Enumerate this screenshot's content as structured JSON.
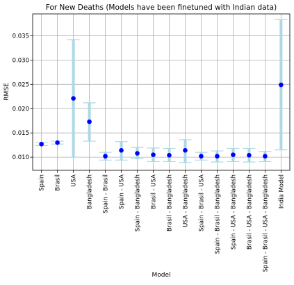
{
  "chart_data": {
    "type": "scatter",
    "title": "For New Deaths (Models have been finetuned with Indian data)",
    "xlabel": "Model",
    "ylabel": "RMSE",
    "ylim": [
      0.0073,
      0.0395
    ],
    "yticks": [
      0.01,
      0.015,
      0.02,
      0.025,
      0.03,
      0.035
    ],
    "ytick_labels": [
      "0.010",
      "0.015",
      "0.020",
      "0.025",
      "0.030",
      "0.035"
    ],
    "grid": true,
    "categories": [
      "Spain",
      "Brasil",
      "USA",
      "Bangladesh",
      "Spain - Brasil",
      "Spain - USA",
      "Spain - Bangladesh",
      "Brasil - USA",
      "Brasil - Bangladesh",
      "USA - Bangladesh",
      "Spain - Brasil - USA",
      "Spain - Brasil - Bangladesh",
      "Spain - USA - Bangladesh",
      "Brasil - USA - Bangladesh",
      "Spain - Brasil - USA - Bangladesh",
      "India Model"
    ],
    "series": [
      {
        "values": [
          0.0127,
          0.013,
          0.0221,
          0.0173,
          0.0102,
          0.0114,
          0.0108,
          0.0105,
          0.0104,
          0.0114,
          0.0102,
          0.0102,
          0.0105,
          0.0104,
          0.0102,
          0.0249
        ],
        "lower": [
          0.0124,
          0.0127,
          0.01,
          0.0133,
          0.0094,
          0.0094,
          0.0097,
          0.0091,
          0.0091,
          0.0089,
          0.0094,
          0.009,
          0.0091,
          0.009,
          0.0091,
          0.0115
        ],
        "upper": [
          0.013,
          0.0133,
          0.0342,
          0.0212,
          0.011,
          0.0132,
          0.012,
          0.0119,
          0.0118,
          0.0136,
          0.011,
          0.0113,
          0.0118,
          0.0118,
          0.0112,
          0.0383
        ]
      }
    ],
    "colors": {
      "point": "#0000ff",
      "errorbar": "#add8e6",
      "grid": "#b0b0b0"
    }
  }
}
